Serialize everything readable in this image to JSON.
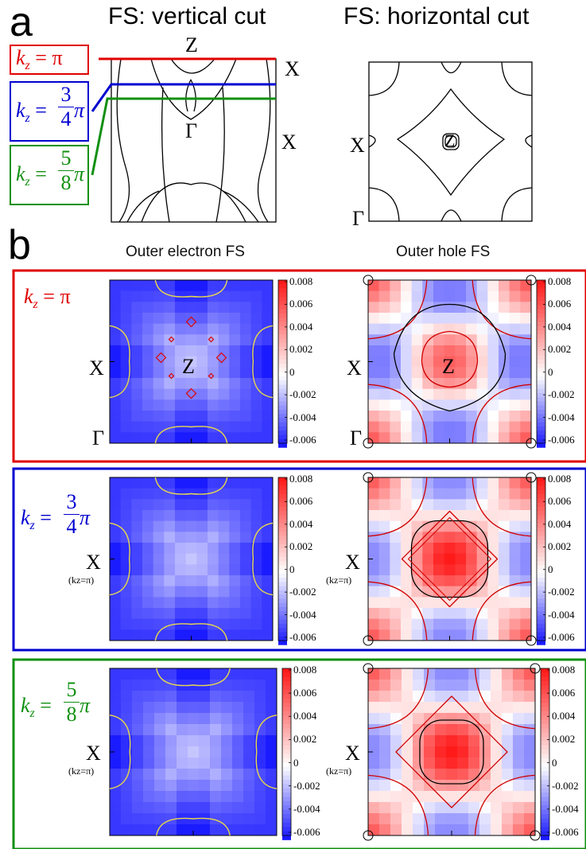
{
  "panel_a": {
    "letter": "a",
    "left_title": "FS: vertical cut",
    "right_title": "FS: horizontal cut",
    "labels": {
      "Z": "Z",
      "X": "X",
      "Gamma": "Γ"
    },
    "kz_boxes": [
      {
        "text_main": "k",
        "sub": "z",
        "rhs": "= π",
        "color": "#e00000"
      },
      {
        "text_main": "k",
        "sub": "z",
        "rhs_num": "3",
        "rhs_den": "4",
        "rhs_pi": "π",
        "color": "#0000d0"
      },
      {
        "text_main": "k",
        "sub": "z",
        "rhs_num": "5",
        "rhs_den": "8",
        "rhs_pi": "π",
        "color": "#109010"
      }
    ]
  },
  "panel_b": {
    "letter": "b",
    "col_titles": [
      "Outer electron FS",
      "Outer hole FS"
    ],
    "rows": [
      {
        "color": "#e00000",
        "kz": "kz = π",
        "x_label": "X",
        "x_sub": "",
        "gamma": "Γ",
        "center": "Z"
      },
      {
        "color": "#0000d0",
        "kz": "kz = 3/4 π",
        "x_label": "X",
        "x_sub": "(kz=π)",
        "gamma": "",
        "center": ""
      },
      {
        "color": "#109010",
        "kz": "kz = 5/8 π",
        "x_label": "X",
        "x_sub": "(kz=π)",
        "gamma": "",
        "center": ""
      }
    ],
    "colorbar_ticks": [
      "0.008",
      "0.006",
      "0.004",
      "0.002",
      "0",
      "-0.002",
      "-0.004",
      "-0.006"
    ],
    "colorbar_colors": {
      "high": "#ff1a1a",
      "mid": "#ffffff",
      "low": "#1a1aff"
    }
  }
}
